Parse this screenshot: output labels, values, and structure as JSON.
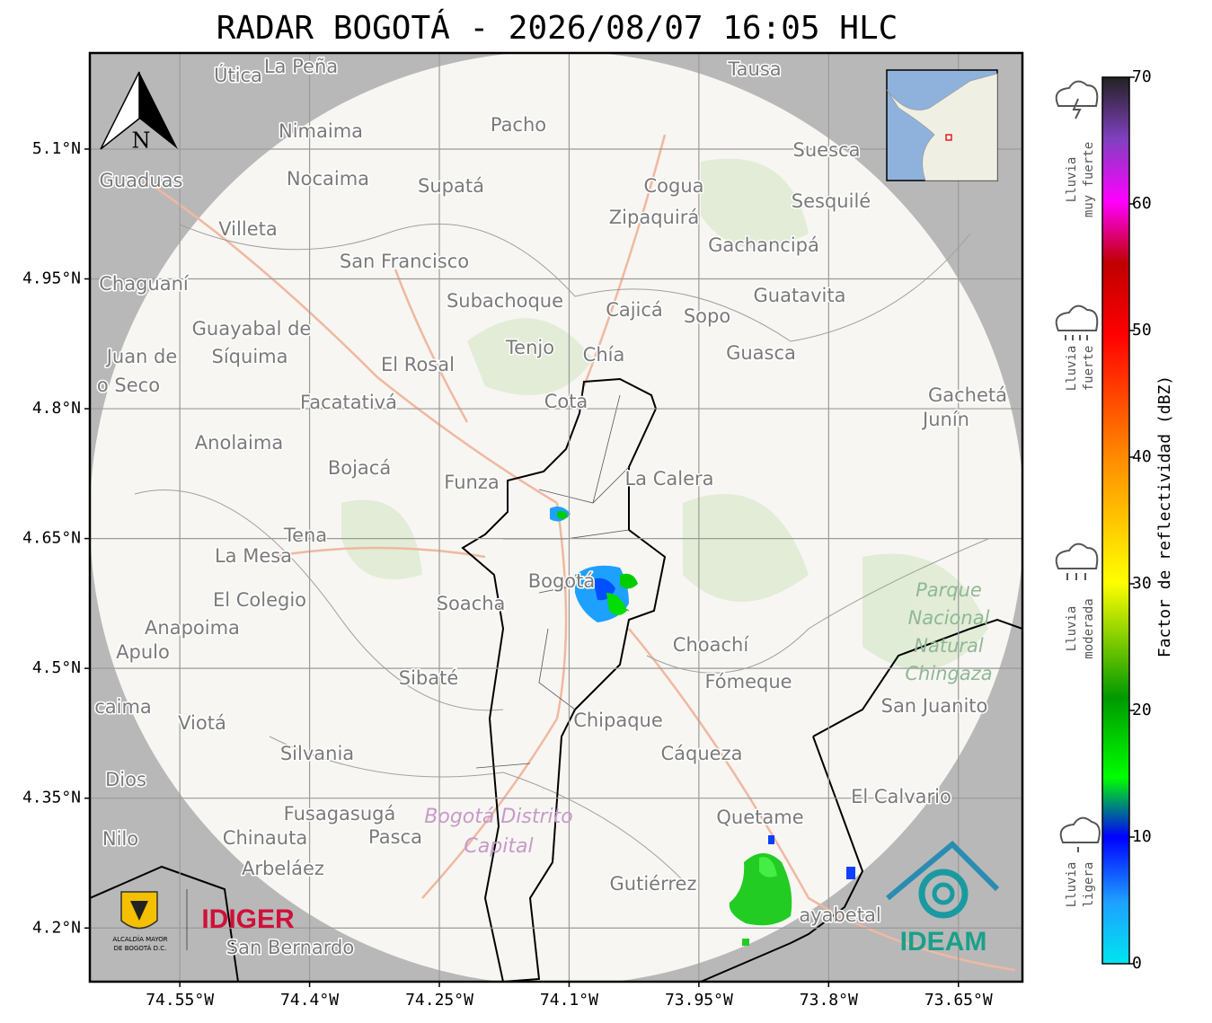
{
  "title": "RADAR BOGOTÁ - 2026/08/07 16:05 HLC",
  "map": {
    "xlim": [
      -74.654,
      -73.576
    ],
    "ylim": [
      4.138,
      5.211
    ],
    "xticks": [
      {
        "value": -74.55,
        "label": "74.55°W"
      },
      {
        "value": -74.4,
        "label": "74.4°W"
      },
      {
        "value": -74.25,
        "label": "74.25°W"
      },
      {
        "value": -74.1,
        "label": "74.1°W"
      },
      {
        "value": -73.95,
        "label": "73.95°W"
      },
      {
        "value": -73.8,
        "label": "73.8°W"
      },
      {
        "value": -73.65,
        "label": "73.65°W"
      }
    ],
    "yticks": [
      {
        "value": 5.1,
        "label": "5.1°N"
      },
      {
        "value": 4.95,
        "label": "4.95°N"
      },
      {
        "value": 4.8,
        "label": "4.8°N"
      },
      {
        "value": 4.65,
        "label": "4.65°N"
      },
      {
        "value": 4.5,
        "label": "4.5°N"
      },
      {
        "value": 4.35,
        "label": "4.35°N"
      },
      {
        "value": 4.2,
        "label": "4.2°N"
      }
    ],
    "north_label": "N",
    "places": [
      "Útica",
      "La Peña",
      "Tausa",
      "Pacho",
      "Nimaima",
      "Guaduas",
      "Nocaima",
      "Supatá",
      "Cogua",
      "Suesca",
      "Sesquilé",
      "Zipaquirá",
      "Villeta",
      "Gachancipá",
      "San Francisco",
      "Chaguaní",
      "Guatavita",
      "Subachoque",
      "Cajicá",
      "Sopo",
      "Guayabal de",
      "Síquima",
      "Juan de",
      "o Seco",
      "Tenjo",
      "Chía",
      "Guasca",
      "El Rosal",
      "Facatativá",
      "Cota",
      "Gachetá",
      "Junín",
      "Anolaima",
      "Bojacá",
      "Funza",
      "La Calera",
      "Tena",
      "La Mesa",
      "El Colegio",
      "Soacha",
      "Anapoima",
      "Apulo",
      "Choachí",
      "Sibaté",
      "Fómeque",
      "San Juanito",
      "caima",
      "Viotá",
      "Chipaque",
      "Silvania",
      "Cáqueza",
      "Dios",
      "El Calvario",
      "Fusagasugá",
      "Quetame",
      "Chinauta",
      "Pasca",
      "Nilo",
      "Arbeláez",
      "Gutiérrez",
      "ayabetal",
      "San Bernardo",
      "Bogotá"
    ],
    "protected_area": [
      "Parque",
      "Nacional",
      "Natural",
      "Chingaza"
    ],
    "district": [
      "Bogotá Distrito",
      "Capital"
    ]
  },
  "colorbar": {
    "label": "Factor de reflectividad (dBZ)",
    "lim": [
      0,
      70
    ],
    "ticks": [
      0,
      10,
      20,
      30,
      40,
      50,
      60,
      70
    ],
    "categories": [
      [
        "Lluvia",
        "muy fuerte"
      ],
      [
        "Lluvia",
        "fuerte"
      ],
      [
        "Lluvia",
        "moderada"
      ],
      [
        "Lluvia",
        "ligera"
      ]
    ]
  },
  "logos": {
    "alcaldia": [
      "ALCALDÍA MAYOR",
      "DE BOGOTÁ D.C."
    ],
    "idiger": "IDIGER",
    "ideam": "IDEAM"
  }
}
